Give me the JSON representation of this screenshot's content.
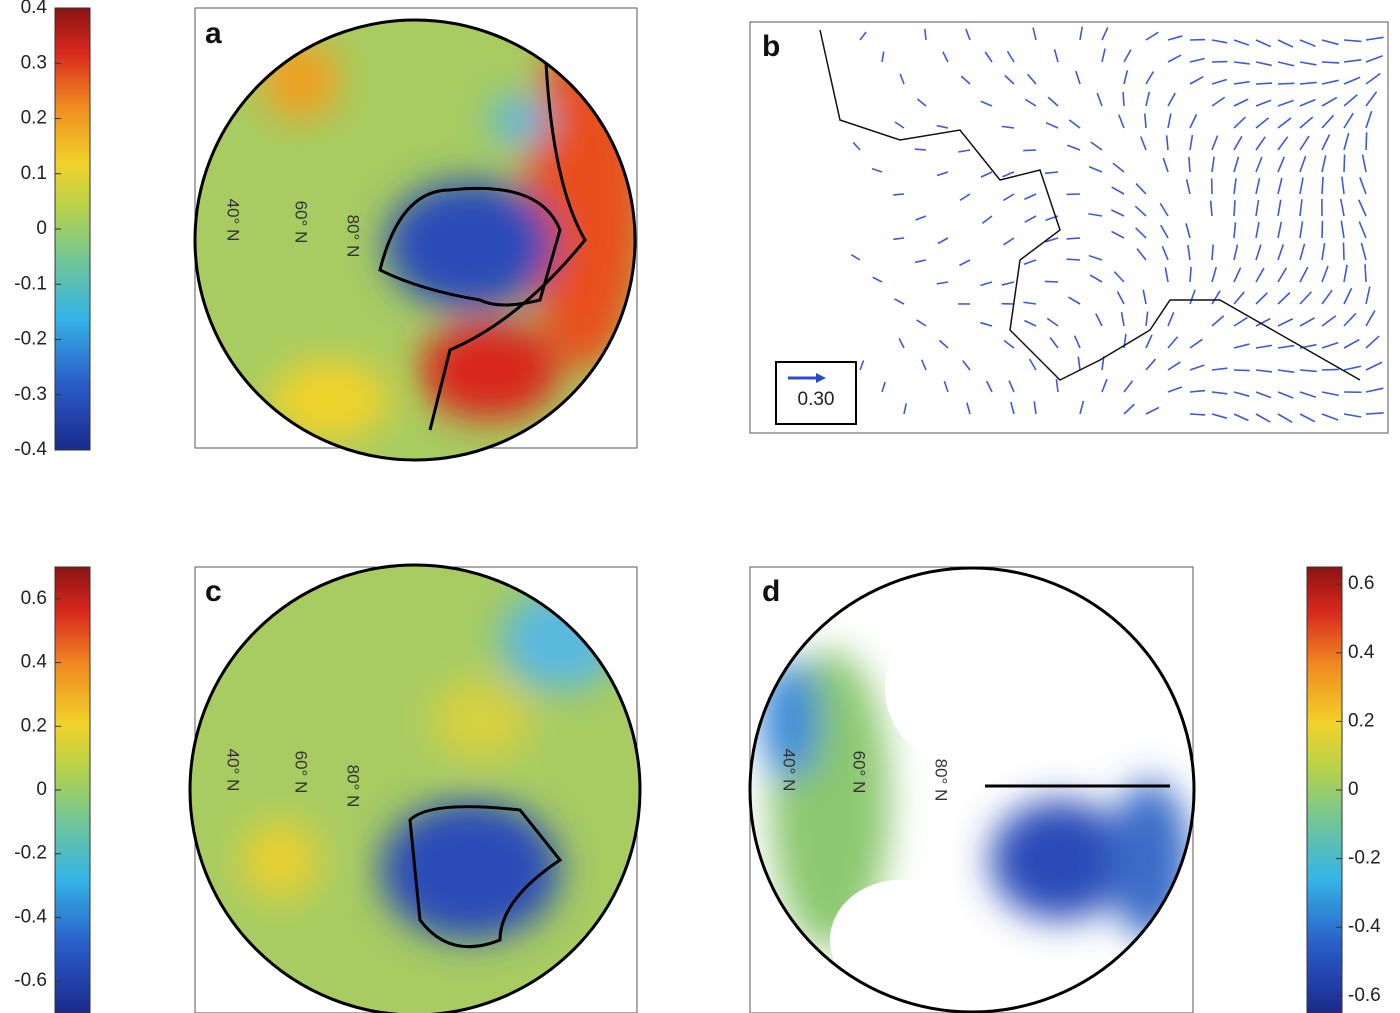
{
  "colorbars": [
    {
      "lim": [
        -0.4,
        0.4
      ],
      "ticks": [
        0.4,
        0.3,
        0.2,
        0.1,
        0,
        -0.1,
        -0.2,
        -0.3,
        -0.4
      ]
    },
    {
      "lim": [
        -0.7,
        0.7
      ],
      "ticks": [
        0.6,
        0.4,
        0.2,
        0,
        -0.2,
        -0.4,
        -0.6
      ]
    },
    {
      "lim": [
        -0.65,
        0.65
      ],
      "ticks": [
        0.6,
        0.4,
        0.2,
        0,
        -0.2,
        -0.4,
        -0.6
      ]
    }
  ],
  "panels": [
    {
      "label": "a",
      "latitudes": [
        "40° N",
        "60° N",
        "80° N"
      ]
    },
    {
      "label": "b",
      "scale_label": "0.30"
    },
    {
      "label": "c",
      "latitudes": [
        "40° N",
        "60° N",
        "80° N"
      ]
    },
    {
      "label": "d",
      "latitudes": [
        "40° N",
        "60° N",
        "80° N"
      ]
    }
  ]
}
